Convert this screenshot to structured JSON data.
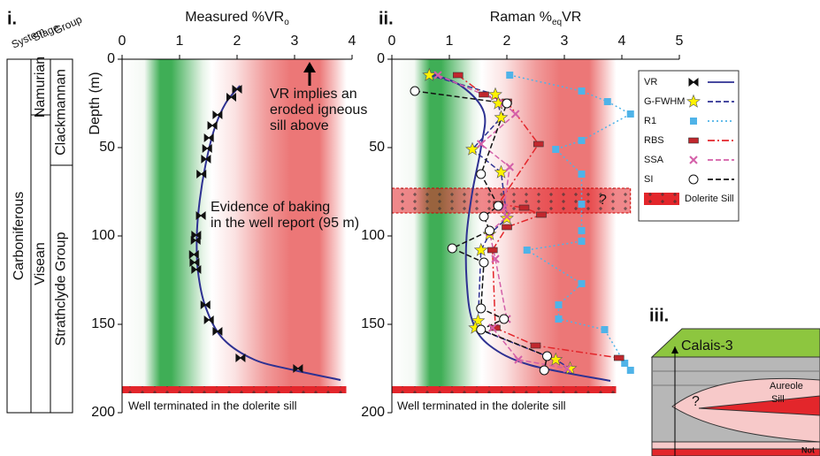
{
  "stratigraphy": {
    "panel": "i.",
    "headers": [
      "System",
      "Stage",
      "Group"
    ],
    "system": "Carboniferous",
    "stages": [
      {
        "name": "Namurian",
        "depth": [
          0,
          31.5
        ]
      },
      {
        "name": "Visean",
        "depth": [
          31.5,
          200
        ]
      }
    ],
    "groups": [
      {
        "name": "Clackmannan",
        "depth": [
          0,
          60
        ]
      },
      {
        "name": "Strathclyde Group",
        "depth": [
          60,
          200
        ]
      }
    ]
  },
  "diagram": {
    "panel": "iii.",
    "well": "Calais-3",
    "aureole": "Aureole",
    "sill": "Sill",
    "question": "?",
    "cut_text": "Not"
  },
  "chart_data": [
    {
      "type": "scatter",
      "title_parts": [
        "Measured %VR",
        "o"
      ],
      "ylabel": "Depth (m)",
      "xlim": [
        0,
        4
      ],
      "xticks": [
        0,
        1,
        2,
        3,
        4
      ],
      "ylim": [
        0,
        200
      ],
      "yticks": [
        0,
        50,
        100,
        150,
        200
      ],
      "y_inverted": true,
      "series": [
        {
          "color": "#111111",
          "marker": "bowtie",
          "line": "none",
          "x": [
            2.0,
            1.9,
            1.66,
            1.57,
            1.51,
            1.48,
            1.46,
            1.38,
            1.37,
            1.29,
            1.28,
            1.25,
            1.26,
            1.29,
            1.45,
            1.51,
            1.66,
            2.06,
            3.06
          ],
          "y": [
            17,
            21.5,
            31.5,
            37.5,
            44.5,
            50.5,
            56.5,
            65,
            88.5,
            99.5,
            102.5,
            110.5,
            115,
            119,
            139,
            147.5,
            154,
            169,
            175
          ]
        }
      ],
      "fit": {
        "color": "#2e3192",
        "x": [
          2.05,
          1.8,
          1.6,
          1.45,
          1.35,
          1.3,
          1.32,
          1.45,
          1.75,
          2.3,
          3.0,
          3.8
        ],
        "y": [
          15,
          25,
          40,
          60,
          80,
          100,
          120,
          140,
          158,
          170,
          176,
          181.5
        ]
      },
      "bands": [
        {
          "ylim": [
            185,
            189
          ],
          "color": "#e3262b"
        }
      ],
      "annotations": [
        [
          "VR implies an",
          "eroded igneous",
          "sill above"
        ],
        [
          "Evidence of baking",
          "in the well report (95 m)"
        ],
        [
          "Well terminated in the dolerite sill"
        ]
      ]
    },
    {
      "type": "scatter",
      "title_parts": [
        "Raman %",
        "eq",
        "VR"
      ],
      "xlim": [
        0,
        5
      ],
      "xticks": [
        0,
        1,
        2,
        3,
        4,
        5
      ],
      "ylim": [
        0,
        200
      ],
      "yticks": [
        0,
        50,
        100,
        150,
        200
      ],
      "y_inverted": true,
      "legend": "upper right",
      "series": [
        {
          "name": "VR",
          "color": "#2e3192",
          "marker": "bowtie",
          "line": "solid",
          "x": [
            0.65,
            1.2,
            1.6,
            1.55,
            1.4,
            1.3,
            1.3,
            1.4,
            1.7,
            2.4,
            3.8
          ],
          "y": [
            8,
            15,
            30,
            50,
            75,
            100,
            125,
            148,
            162,
            173,
            182
          ]
        },
        {
          "name": "G-FWHM",
          "color": "#2e3192",
          "marker": "star",
          "line": "dash",
          "x": [
            0.65,
            1.8,
            1.85,
            1.9,
            1.4,
            1.9,
            2.0,
            1.7,
            1.55,
            1.5,
            1.45,
            2.85,
            3.1
          ],
          "y": [
            9,
            20,
            25,
            33,
            51,
            64,
            90,
            99,
            108,
            148,
            152,
            170,
            175
          ]
        },
        {
          "name": "R1",
          "color": "#4fb3e8",
          "marker": "square",
          "line": "dot",
          "x": [
            2.05,
            3.3,
            3.75,
            4.15,
            3.3,
            2.85,
            3.3,
            3.3,
            3.3,
            3.3,
            2.35,
            3.3,
            2.9,
            2.9,
            3.7,
            4.05,
            4.15
          ],
          "y": [
            9,
            18,
            24,
            31,
            46,
            51,
            65,
            82,
            97,
            103,
            108,
            127,
            139,
            147,
            153,
            172,
            176
          ]
        },
        {
          "name": "RBS",
          "color": "#e3262b",
          "marker": "rect",
          "line": "dashdot",
          "x": [
            1.15,
            1.6,
            2.0,
            2.55,
            1.85,
            2.3,
            2.6,
            2.0,
            1.75,
            1.8,
            2.5,
            3.95
          ],
          "y": [
            9,
            20,
            24,
            48,
            82,
            84,
            88,
            95,
            108,
            152,
            162,
            169
          ]
        },
        {
          "name": "SSA",
          "color": "#d45fa8",
          "marker": "x",
          "line": "dash",
          "x": [
            0.8,
            1.95,
            2.15,
            1.55,
            2.05,
            1.95,
            2.0,
            1.7,
            1.8,
            2.0,
            1.75,
            2.2,
            3.05
          ],
          "y": [
            9,
            25,
            31,
            48,
            61,
            84,
            89,
            98,
            113,
            147,
            152,
            170,
            175
          ]
        },
        {
          "name": "SI",
          "color": "#111111",
          "marker": "circle",
          "line": "dash",
          "x": [
            0.4,
            2.0,
            1.55,
            1.85,
            1.6,
            1.7,
            1.05,
            1.6,
            1.55,
            1.95,
            1.55,
            2.7,
            2.65
          ],
          "y": [
            18,
            25,
            65,
            83,
            89,
            97,
            107,
            115,
            141,
            147,
            153,
            168,
            176
          ]
        }
      ],
      "bands": [
        {
          "ylim": [
            73,
            87
          ],
          "color": "#e3262b",
          "label": "Dolerite Sill",
          "note": "?"
        },
        {
          "ylim": [
            185,
            189
          ],
          "color": "#e3262b"
        }
      ],
      "annotations": [
        [
          "Well terminated in the dolerite sill"
        ]
      ]
    }
  ]
}
